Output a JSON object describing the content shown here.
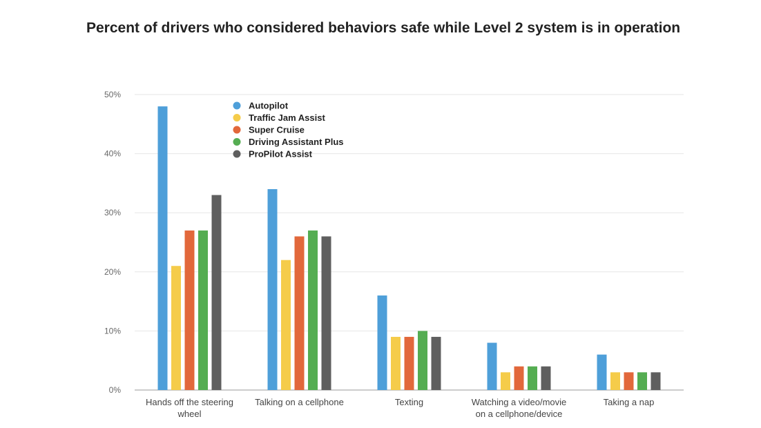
{
  "chart_data": {
    "type": "bar",
    "title": "Percent of drivers who considered behaviors safe while Level 2 system is in operation",
    "xlabel": "",
    "ylabel": "",
    "ylim": [
      0,
      50
    ],
    "yticks": [
      0,
      10,
      20,
      30,
      40,
      50
    ],
    "ytick_labels": [
      "0%",
      "10%",
      "20%",
      "30%",
      "40%",
      "50%"
    ],
    "grid": true,
    "legend_position": "top-left",
    "categories": [
      [
        "Hands off the steering",
        "wheel"
      ],
      [
        "Talking on a cellphone"
      ],
      [
        "Texting"
      ],
      [
        "Watching a video/movie",
        "on a cellphone/device"
      ],
      [
        "Taking a nap"
      ]
    ],
    "series": [
      {
        "name": "Autopilot",
        "color": "#4e9fd9",
        "values": [
          48,
          34,
          16,
          8,
          6
        ]
      },
      {
        "name": "Traffic Jam Assist",
        "color": "#f5cc4a",
        "values": [
          21,
          22,
          9,
          3,
          3
        ]
      },
      {
        "name": "Super Cruise",
        "color": "#e2683b",
        "values": [
          27,
          26,
          9,
          4,
          3
        ]
      },
      {
        "name": "Driving Assistant Plus",
        "color": "#55ad52",
        "values": [
          27,
          27,
          10,
          4,
          3
        ]
      },
      {
        "name": "ProPilot Assist",
        "color": "#5f5f5f",
        "values": [
          33,
          26,
          9,
          4,
          3
        ]
      }
    ]
  }
}
